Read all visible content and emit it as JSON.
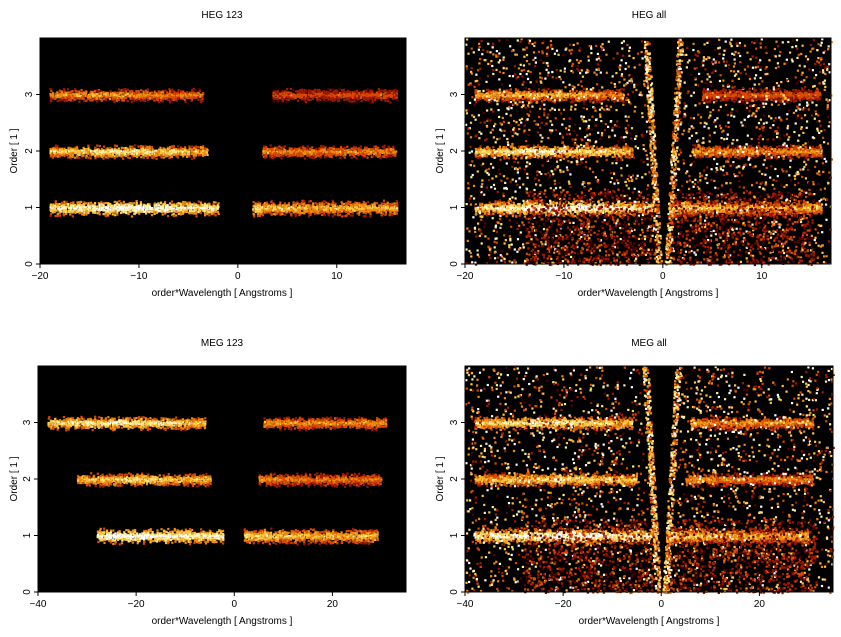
{
  "figure": {
    "background": "#ffffff",
    "plot_background": "#000000",
    "colormap": [
      "#000000",
      "#5a0000",
      "#a11800",
      "#d94a00",
      "#f08a10",
      "#ffc640",
      "#fff0a0",
      "#ffffff"
    ]
  },
  "chart_data": [
    {
      "type": "heatmap",
      "title": "HEG 123",
      "xlabel": "order*Wavelength [ Angstroms ]",
      "ylabel": "Order [ 1 ]",
      "xlim": [
        -20,
        17
      ],
      "ylim": [
        0,
        4
      ],
      "xticks": [
        -20,
        -10,
        0,
        10
      ],
      "xtick_labels": [
        "−20",
        "−10",
        "0",
        "10"
      ],
      "yticks": [
        0,
        1,
        2,
        3
      ],
      "ytick_labels": [
        "0",
        "1",
        "2",
        "3"
      ],
      "series": [
        {
          "order": 1,
          "bands": [
            [
              -19,
              -2
            ],
            [
              1.5,
              16
            ]
          ],
          "intensity": 0.98,
          "peak_x": -10
        },
        {
          "order": 2,
          "bands": [
            [
              -19,
              -3
            ],
            [
              2.5,
              16
            ]
          ],
          "intensity": 0.8,
          "peak_x": -12
        },
        {
          "order": 3,
          "bands": [
            [
              -19,
              -3.5
            ],
            [
              3.5,
              16
            ]
          ],
          "intensity": 0.6,
          "peak_x": -14
        }
      ],
      "background_noise": false,
      "wedge": false
    },
    {
      "type": "heatmap",
      "title": "HEG all",
      "xlabel": "order*Wavelength [ Angstroms ]",
      "ylabel": "Order [ 1 ]",
      "xlim": [
        -20,
        17
      ],
      "ylim": [
        0,
        4
      ],
      "xticks": [
        -20,
        -10,
        0,
        10
      ],
      "xtick_labels": [
        "−20",
        "−10",
        "0",
        "10"
      ],
      "yticks": [
        0,
        1,
        2,
        3
      ],
      "ytick_labels": [
        "0",
        "1",
        "2",
        "3"
      ],
      "series": [
        {
          "order": 1,
          "bands": [
            [
              -19,
              -1
            ],
            [
              1,
              16
            ]
          ],
          "intensity": 0.98,
          "peak_x": -10
        },
        {
          "order": 2,
          "bands": [
            [
              -19,
              -3
            ],
            [
              3,
              16
            ]
          ],
          "intensity": 0.85,
          "peak_x": -12
        },
        {
          "order": 3,
          "bands": [
            [
              -19,
              -4
            ],
            [
              4,
              16
            ]
          ],
          "intensity": 0.65,
          "peak_x": -14
        }
      ],
      "background_noise": true,
      "wedge": true
    },
    {
      "type": "heatmap",
      "title": "MEG 123",
      "xlabel": "order*Wavelength [ Angstroms ]",
      "ylabel": "Order [ 1 ]",
      "xlim": [
        -40,
        35
      ],
      "ylim": [
        0,
        4
      ],
      "xticks": [
        -40,
        -20,
        0,
        20
      ],
      "xtick_labels": [
        "−40",
        "−20",
        "0",
        "20"
      ],
      "yticks": [
        0,
        1,
        2,
        3
      ],
      "ytick_labels": [
        "0",
        "1",
        "2",
        "3"
      ],
      "series": [
        {
          "order": 1,
          "bands": [
            [
              -28,
              -2
            ],
            [
              2,
              29
            ]
          ],
          "intensity": 0.98,
          "peak_x": -20
        },
        {
          "order": 2,
          "bands": [
            [
              -32,
              -5
            ],
            [
              5,
              30
            ]
          ],
          "intensity": 0.75,
          "peak_x": -20
        },
        {
          "order": 3,
          "bands": [
            [
              -38,
              -6
            ],
            [
              6,
              31
            ]
          ],
          "intensity": 0.85,
          "peak_x": -24
        }
      ],
      "background_noise": false,
      "wedge": false
    },
    {
      "type": "heatmap",
      "title": "MEG all",
      "xlabel": "order*Wavelength [ Angstroms ]",
      "ylabel": "Order [ 1 ]",
      "xlim": [
        -40,
        35
      ],
      "ylim": [
        0,
        4
      ],
      "xticks": [
        -40,
        -20,
        0,
        20
      ],
      "xtick_labels": [
        "−40",
        "−20",
        "0",
        "20"
      ],
      "yticks": [
        0,
        1,
        2,
        3
      ],
      "ytick_labels": [
        "0",
        "1",
        "2",
        "3"
      ],
      "series": [
        {
          "order": 1,
          "bands": [
            [
              -38,
              -1
            ],
            [
              1,
              30
            ]
          ],
          "intensity": 0.98,
          "peak_x": -20
        },
        {
          "order": 2,
          "bands": [
            [
              -38,
              -5
            ],
            [
              5,
              31
            ]
          ],
          "intensity": 0.78,
          "peak_x": -20
        },
        {
          "order": 3,
          "bands": [
            [
              -38,
              -6
            ],
            [
              6,
              31
            ]
          ],
          "intensity": 0.85,
          "peak_x": -24
        }
      ],
      "background_noise": true,
      "wedge": true
    }
  ]
}
